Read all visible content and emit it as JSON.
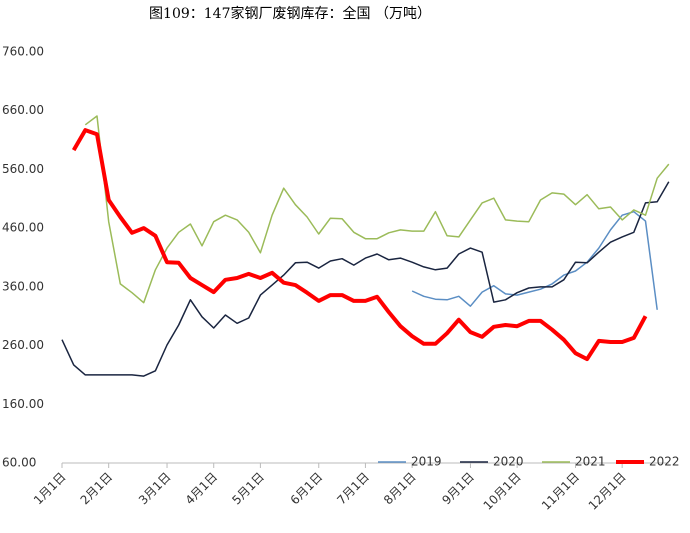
{
  "chart_data": {
    "type": "line",
    "title": "图109：147家钢厂废钢库存：全国 （万吨）",
    "categories": [
      "1月1日",
      null,
      null,
      null,
      "2月1日",
      null,
      null,
      null,
      null,
      "3月1日",
      null,
      null,
      null,
      "4月1日",
      null,
      null,
      null,
      "5月1日",
      null,
      null,
      null,
      null,
      "6月1日",
      null,
      null,
      null,
      "7月1日",
      null,
      null,
      null,
      "8月1日",
      null,
      null,
      null,
      null,
      "9月1日",
      null,
      null,
      null,
      "10月1日",
      null,
      null,
      null,
      null,
      "11月1日",
      null,
      null,
      null,
      "12月1日",
      null,
      null,
      null,
      null
    ],
    "ylim": [
      60,
      760
    ],
    "yticks": [
      {
        "value": 60,
        "label": "60.00"
      },
      {
        "value": 160,
        "label": "160.00"
      },
      {
        "value": 260,
        "label": "260.00"
      },
      {
        "value": 360,
        "label": "360.00"
      },
      {
        "value": 460,
        "label": "460.00"
      },
      {
        "value": 560,
        "label": "560.00"
      },
      {
        "value": 660,
        "label": "660.00"
      },
      {
        "value": 760,
        "label": "760.00"
      }
    ],
    "grid": false,
    "legend": "bottom-right",
    "series": [
      {
        "name": "2019",
        "color": "#5b8ec4",
        "width": 1.5,
        "values": [
          null,
          null,
          null,
          null,
          null,
          null,
          null,
          null,
          null,
          null,
          null,
          null,
          null,
          null,
          null,
          null,
          null,
          null,
          null,
          null,
          null,
          null,
          null,
          null,
          null,
          null,
          null,
          null,
          null,
          null,
          353,
          344,
          339,
          338,
          344,
          327,
          351,
          362,
          348,
          346,
          351,
          356,
          365,
          380,
          387,
          402,
          426,
          457,
          482,
          488,
          472,
          321,
          null
        ]
      },
      {
        "name": "2020",
        "color": "#1a2540",
        "width": 1.5,
        "values": [
          270,
          227,
          210,
          210,
          210,
          210,
          210,
          208,
          217,
          261,
          295,
          338,
          309,
          290,
          312,
          298,
          307,
          346,
          363,
          380,
          401,
          402,
          392,
          404,
          408,
          397,
          409,
          416,
          406,
          409,
          402,
          394,
          389,
          392,
          416,
          426,
          419,
          334,
          338,
          350,
          358,
          360,
          360,
          372,
          402,
          401,
          419,
          436,
          445,
          453,
          503,
          505,
          539
        ]
      },
      {
        "name": "2021",
        "color": "#9bbb59",
        "width": 1.5,
        "values": [
          null,
          null,
          636,
          651,
          471,
          365,
          350,
          333,
          389,
          426,
          453,
          467,
          430,
          471,
          482,
          474,
          453,
          418,
          482,
          528,
          500,
          479,
          450,
          477,
          476,
          453,
          442,
          442,
          452,
          457,
          455,
          455,
          488,
          447,
          445,
          474,
          503,
          511,
          474,
          472,
          471,
          508,
          520,
          518,
          500,
          517,
          493,
          496,
          474,
          491,
          482,
          545,
          569
        ]
      },
      {
        "name": "2022",
        "color": "#ff0000",
        "width": 4,
        "values": [
          null,
          593,
          627,
          620,
          508,
          479,
          452,
          460,
          447,
          402,
          401,
          375,
          363,
          351,
          372,
          375,
          382,
          375,
          384,
          367,
          363,
          350,
          336,
          346,
          346,
          336,
          336,
          343,
          317,
          293,
          276,
          263,
          263,
          281,
          304,
          283,
          275,
          292,
          295,
          293,
          302,
          302,
          287,
          270,
          247,
          237,
          268,
          266,
          266,
          273,
          310,
          null,
          null
        ]
      }
    ]
  }
}
